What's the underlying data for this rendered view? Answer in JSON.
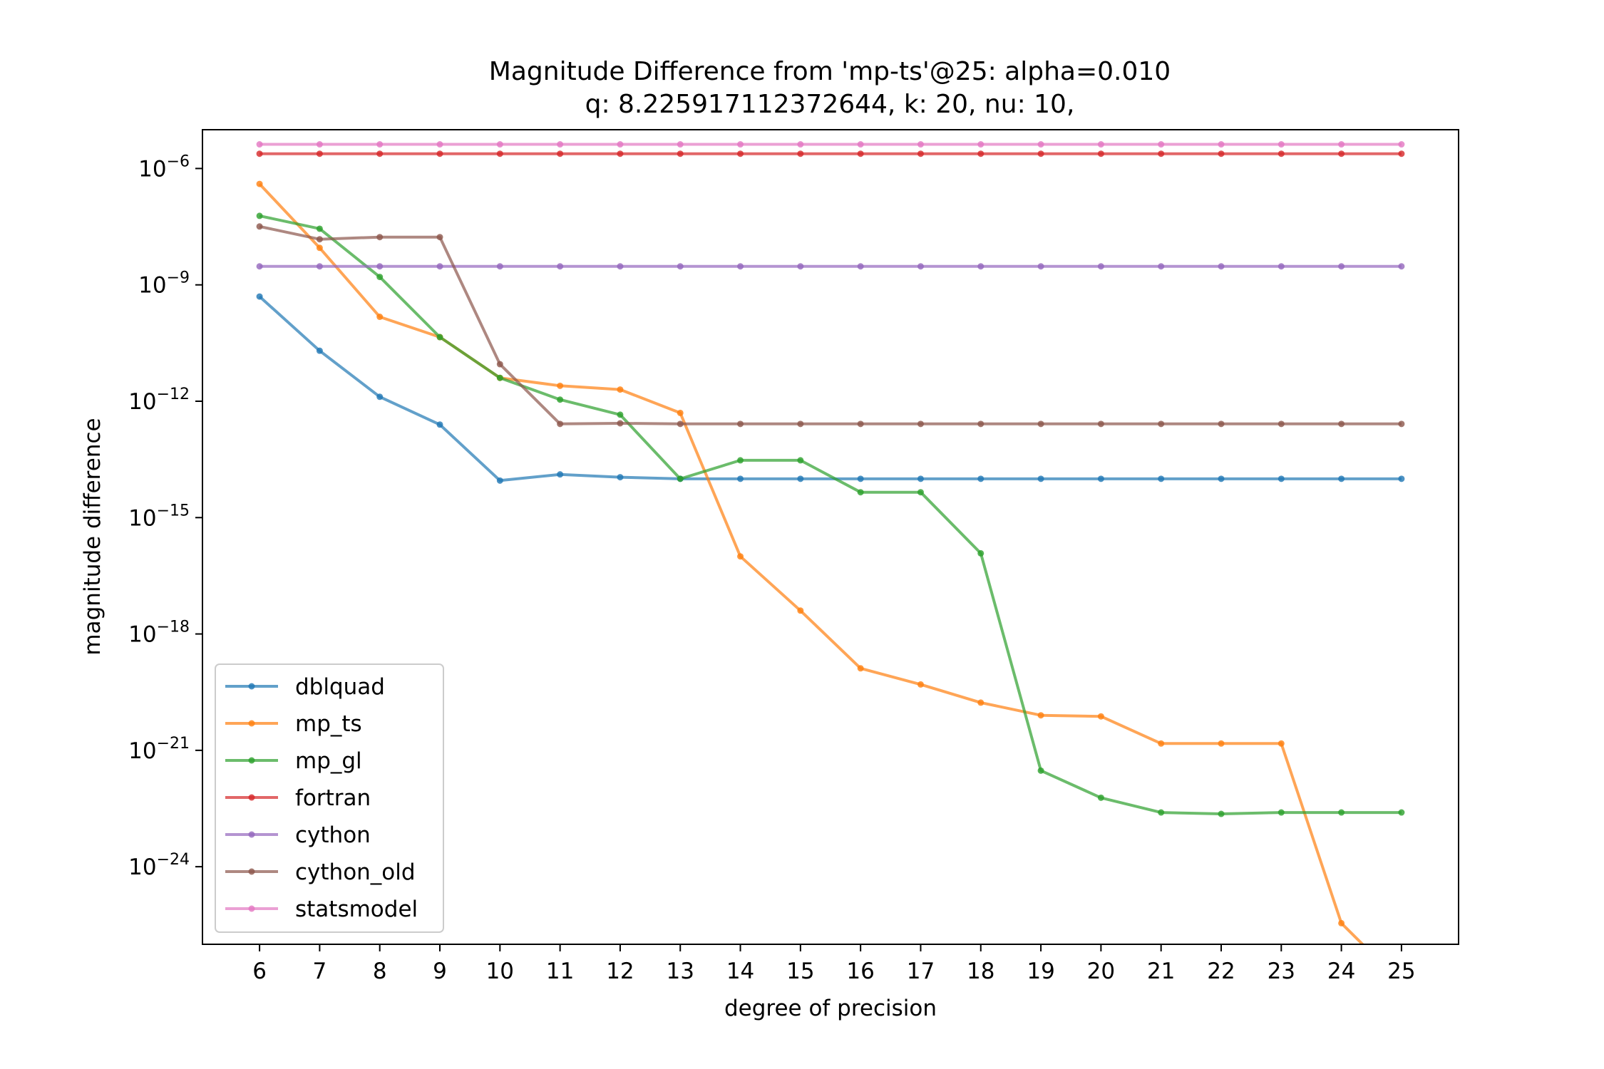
{
  "chart_data": {
    "type": "line",
    "title": "Magnitude Difference from 'mp-ts'@25: alpha=0.010",
    "subtitle": "q: 8.225917112372644, k: 20, nu: 10,",
    "xlabel": "degree of precision",
    "ylabel": "magnitude difference",
    "y_scale": "log",
    "ylim": [
      1e-26,
      1e-05
    ],
    "x": [
      6,
      7,
      8,
      9,
      10,
      11,
      12,
      13,
      14,
      15,
      16,
      17,
      18,
      19,
      20,
      21,
      22,
      23,
      24,
      25
    ],
    "x_ticks": [
      "6",
      "7",
      "8",
      "9",
      "10",
      "11",
      "12",
      "13",
      "14",
      "15",
      "16",
      "17",
      "18",
      "19",
      "20",
      "21",
      "22",
      "23",
      "24",
      "25"
    ],
    "y_ticks": [
      {
        "value": 1e-06,
        "base": "10",
        "exp": "−6"
      },
      {
        "value": 1e-09,
        "base": "10",
        "exp": "−9"
      },
      {
        "value": 1e-12,
        "base": "10",
        "exp": "−12"
      },
      {
        "value": 1e-15,
        "base": "10",
        "exp": "−15"
      },
      {
        "value": 1e-18,
        "base": "10",
        "exp": "−18"
      },
      {
        "value": 1e-21,
        "base": "10",
        "exp": "−21"
      },
      {
        "value": 1e-24,
        "base": "10",
        "exp": "−24"
      }
    ],
    "legend_position": "lower-left",
    "series": [
      {
        "name": "dblquad",
        "color": "#1f77b4",
        "values": [
          5e-10,
          2e-11,
          1.3e-12,
          2.5e-13,
          9e-15,
          1.3e-14,
          1.1e-14,
          1e-14,
          1e-14,
          1e-14,
          1e-14,
          1e-14,
          1e-14,
          1e-14,
          1e-14,
          1e-14,
          1e-14,
          1e-14,
          1e-14,
          1e-14
        ]
      },
      {
        "name": "mp_ts",
        "color": "#ff7f0e",
        "values": [
          4e-07,
          9e-09,
          1.5e-10,
          4.5e-11,
          4e-12,
          2.5e-12,
          2e-12,
          5e-13,
          1e-16,
          4e-18,
          1.3e-19,
          5e-20,
          1.7e-20,
          8e-21,
          7.5e-21,
          1.5e-21,
          1.5e-21,
          1.5e-21,
          3.5e-26,
          1e-27
        ]
      },
      {
        "name": "mp_gl",
        "color": "#2ca02c",
        "values": [
          6e-08,
          2.8e-08,
          1.6e-09,
          4.5e-11,
          4e-12,
          1.1e-12,
          4.5e-13,
          1e-14,
          3e-14,
          3e-14,
          4.5e-15,
          4.5e-15,
          1.2e-16,
          3e-22,
          6e-23,
          2.5e-23,
          2.3e-23,
          2.5e-23,
          2.5e-23,
          2.5e-23
        ]
      },
      {
        "name": "fortran",
        "color": "#d62728",
        "values": [
          2.4e-06,
          2.4e-06,
          2.4e-06,
          2.4e-06,
          2.4e-06,
          2.4e-06,
          2.4e-06,
          2.4e-06,
          2.4e-06,
          2.4e-06,
          2.4e-06,
          2.4e-06,
          2.4e-06,
          2.4e-06,
          2.4e-06,
          2.4e-06,
          2.4e-06,
          2.4e-06,
          2.4e-06,
          2.4e-06
        ]
      },
      {
        "name": "cython",
        "color": "#9467bd",
        "values": [
          3e-09,
          3e-09,
          3e-09,
          3e-09,
          3e-09,
          3e-09,
          3e-09,
          3e-09,
          3e-09,
          3e-09,
          3e-09,
          3e-09,
          3e-09,
          3e-09,
          3e-09,
          3e-09,
          3e-09,
          3e-09,
          3e-09,
          3e-09
        ]
      },
      {
        "name": "cython_old",
        "color": "#8c564b",
        "values": [
          3.2e-08,
          1.5e-08,
          1.7e-08,
          1.7e-08,
          9e-12,
          2.6e-13,
          2.7e-13,
          2.6e-13,
          2.6e-13,
          2.6e-13,
          2.6e-13,
          2.6e-13,
          2.6e-13,
          2.6e-13,
          2.6e-13,
          2.6e-13,
          2.6e-13,
          2.6e-13,
          2.6e-13,
          2.6e-13
        ]
      },
      {
        "name": "statsmodel",
        "color": "#e377c2",
        "values": [
          4.2e-06,
          4.2e-06,
          4.2e-06,
          4.2e-06,
          4.2e-06,
          4.2e-06,
          4.2e-06,
          4.2e-06,
          4.2e-06,
          4.2e-06,
          4.2e-06,
          4.2e-06,
          4.2e-06,
          4.2e-06,
          4.2e-06,
          4.2e-06,
          4.2e-06,
          4.2e-06,
          4.2e-06,
          4.2e-06
        ]
      }
    ]
  }
}
